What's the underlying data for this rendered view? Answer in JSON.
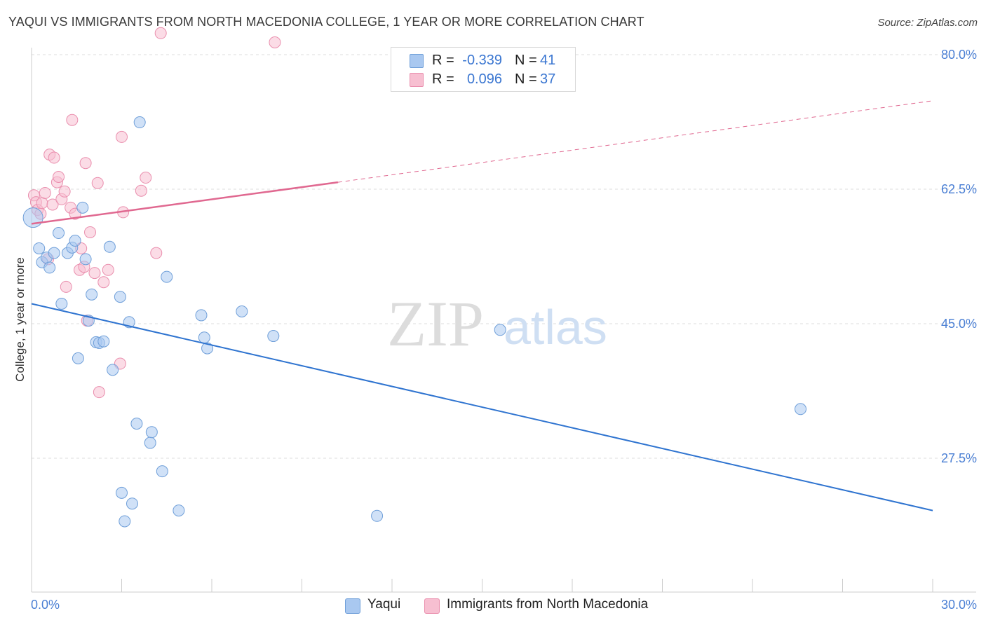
{
  "header": {
    "title": "YAQUI VS IMMIGRANTS FROM NORTH MACEDONIA COLLEGE, 1 YEAR OR MORE CORRELATION CHART",
    "source": "Source: ZipAtlas.com"
  },
  "watermark": {
    "zip": "ZIP",
    "atlas": "atlas"
  },
  "legend": {
    "rows": [
      {
        "r_label": "R =",
        "r_value": "-0.339",
        "n_label": "N =",
        "n_value": "41"
      },
      {
        "r_label": "R =",
        "r_value": "0.096",
        "n_label": "N =",
        "n_value": "37"
      }
    ]
  },
  "bottom_legend": {
    "series_a": "Yaqui",
    "series_b": "Immigrants from North Macedonia"
  },
  "chart_data": {
    "type": "scatter",
    "title": "YAQUI VS IMMIGRANTS FROM NORTH MACEDONIA COLLEGE, 1 YEAR OR MORE CORRELATION CHART",
    "xlabel": "",
    "ylabel": "College, 1 year or more",
    "xlim": [
      0,
      30
    ],
    "ylim": [
      12,
      84
    ],
    "x_tick_labels": [
      "0.0%",
      "30.0%"
    ],
    "y_ticks": [
      {
        "value": 80,
        "label": "80.0%"
      },
      {
        "value": 62.5,
        "label": "62.5%"
      },
      {
        "value": 45,
        "label": "45.0%"
      },
      {
        "value": 27.5,
        "label": "27.5%"
      }
    ],
    "colors": {
      "yaqui_fill": "#a9c8f0",
      "yaqui_stroke": "#6f9fd9",
      "yaqui_line": "#2f74d0",
      "mac_fill": "#f7bfd1",
      "mac_stroke": "#ea8fae",
      "mac_line": "#e06890",
      "grid": "#dddddd",
      "tick_text": "#4a7fd4"
    },
    "series": [
      {
        "name": "Yaqui",
        "r": -0.339,
        "n": 41,
        "trend": {
          "x0": 0,
          "y0": 47.6,
          "x1": 30,
          "y1": 20.7
        },
        "points": [
          {
            "x": 0.05,
            "y": 58.8,
            "big": true
          },
          {
            "x": 0.25,
            "y": 54.8
          },
          {
            "x": 0.35,
            "y": 53.0
          },
          {
            "x": 0.5,
            "y": 53.6
          },
          {
            "x": 0.6,
            "y": 52.3
          },
          {
            "x": 0.75,
            "y": 54.2
          },
          {
            "x": 0.9,
            "y": 56.8
          },
          {
            "x": 1.0,
            "y": 47.6
          },
          {
            "x": 1.2,
            "y": 54.2
          },
          {
            "x": 1.35,
            "y": 54.9
          },
          {
            "x": 1.45,
            "y": 55.8
          },
          {
            "x": 1.55,
            "y": 40.5
          },
          {
            "x": 1.7,
            "y": 60.1
          },
          {
            "x": 1.8,
            "y": 53.4
          },
          {
            "x": 1.9,
            "y": 45.4
          },
          {
            "x": 2.0,
            "y": 48.8
          },
          {
            "x": 2.15,
            "y": 42.6
          },
          {
            "x": 2.25,
            "y": 42.5
          },
          {
            "x": 2.4,
            "y": 42.7
          },
          {
            "x": 2.6,
            "y": 55.0
          },
          {
            "x": 2.7,
            "y": 39.0
          },
          {
            "x": 2.95,
            "y": 48.5
          },
          {
            "x": 3.0,
            "y": 23.0
          },
          {
            "x": 3.1,
            "y": 19.3
          },
          {
            "x": 3.25,
            "y": 45.2
          },
          {
            "x": 3.35,
            "y": 21.6
          },
          {
            "x": 3.5,
            "y": 32.0
          },
          {
            "x": 3.6,
            "y": 71.2
          },
          {
            "x": 3.95,
            "y": 29.5
          },
          {
            "x": 4.0,
            "y": 30.9
          },
          {
            "x": 4.35,
            "y": 25.8
          },
          {
            "x": 4.5,
            "y": 51.1
          },
          {
            "x": 4.9,
            "y": 20.7
          },
          {
            "x": 5.65,
            "y": 46.1
          },
          {
            "x": 5.75,
            "y": 43.2
          },
          {
            "x": 5.85,
            "y": 41.8
          },
          {
            "x": 7.0,
            "y": 46.6
          },
          {
            "x": 8.05,
            "y": 43.4
          },
          {
            "x": 11.5,
            "y": 20.0
          },
          {
            "x": 15.6,
            "y": 44.2
          },
          {
            "x": 25.6,
            "y": 33.9
          }
        ]
      },
      {
        "name": "Immigrants from North Macedonia",
        "r": 0.096,
        "n": 37,
        "trend": {
          "x0": 0,
          "y0": 58.0,
          "x1": 10.2,
          "y1": 63.4,
          "dash_to_x": 30,
          "dash_to_y": 74.0
        },
        "points": [
          {
            "x": 0.08,
            "y": 61.7
          },
          {
            "x": 0.15,
            "y": 60.8
          },
          {
            "x": 0.2,
            "y": 59.8
          },
          {
            "x": 0.3,
            "y": 59.3
          },
          {
            "x": 0.35,
            "y": 60.7
          },
          {
            "x": 0.45,
            "y": 62.0
          },
          {
            "x": 0.55,
            "y": 53.4
          },
          {
            "x": 0.6,
            "y": 67.0
          },
          {
            "x": 0.7,
            "y": 60.5
          },
          {
            "x": 0.75,
            "y": 66.6
          },
          {
            "x": 0.85,
            "y": 63.4
          },
          {
            "x": 0.9,
            "y": 64.1
          },
          {
            "x": 1.0,
            "y": 61.2
          },
          {
            "x": 1.1,
            "y": 62.2
          },
          {
            "x": 1.15,
            "y": 49.8
          },
          {
            "x": 1.3,
            "y": 60.1
          },
          {
            "x": 1.35,
            "y": 71.5
          },
          {
            "x": 1.45,
            "y": 59.3
          },
          {
            "x": 1.6,
            "y": 52.0
          },
          {
            "x": 1.65,
            "y": 54.8
          },
          {
            "x": 1.75,
            "y": 52.4
          },
          {
            "x": 1.8,
            "y": 65.9
          },
          {
            "x": 1.85,
            "y": 45.4
          },
          {
            "x": 1.95,
            "y": 56.9
          },
          {
            "x": 2.1,
            "y": 51.6
          },
          {
            "x": 2.2,
            "y": 63.3
          },
          {
            "x": 2.25,
            "y": 36.1
          },
          {
            "x": 2.4,
            "y": 50.4
          },
          {
            "x": 2.55,
            "y": 52.0
          },
          {
            "x": 2.95,
            "y": 39.8
          },
          {
            "x": 3.0,
            "y": 69.3
          },
          {
            "x": 3.05,
            "y": 59.5
          },
          {
            "x": 3.65,
            "y": 62.3
          },
          {
            "x": 3.8,
            "y": 64.0
          },
          {
            "x": 4.15,
            "y": 54.2
          },
          {
            "x": 4.3,
            "y": 82.8
          },
          {
            "x": 8.1,
            "y": 81.6
          }
        ]
      }
    ]
  }
}
